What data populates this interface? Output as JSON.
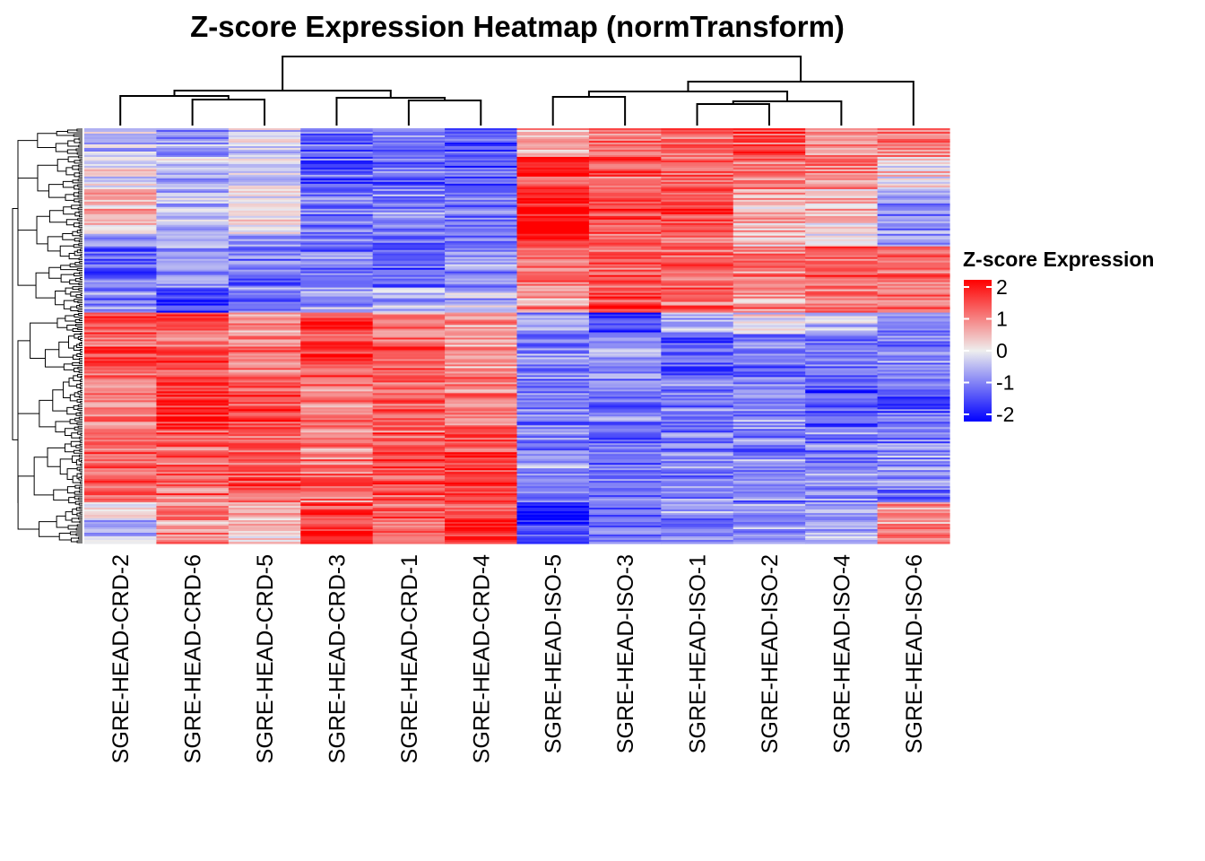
{
  "chart_data": {
    "type": "heatmap",
    "title": "Z-score Expression Heatmap (normTransform)",
    "columns": [
      "SGRE-HEAD-CRD-2",
      "SGRE-HEAD-CRD-6",
      "SGRE-HEAD-CRD-5",
      "SGRE-HEAD-CRD-3",
      "SGRE-HEAD-CRD-1",
      "SGRE-HEAD-CRD-4",
      "SGRE-HEAD-ISO-5",
      "SGRE-HEAD-ISO-3",
      "SGRE-HEAD-ISO-1",
      "SGRE-HEAD-ISO-2",
      "SGRE-HEAD-ISO-4",
      "SGRE-HEAD-ISO-6"
    ],
    "legend": {
      "title": "Z-score Expression",
      "ticks": [
        "2",
        "1",
        "0",
        "-1",
        "-2"
      ],
      "tick_values": [
        2,
        1,
        0,
        -1,
        -2
      ],
      "range": [
        -2,
        2
      ],
      "colors": {
        "low": "#0000FF",
        "mid": "#EEEEEE",
        "high": "#FF0000"
      },
      "placement": "right"
    },
    "column_dendrogram": {
      "merges": [
        {
          "a": "SGRE-HEAD-CRD-6",
          "b": "SGRE-HEAD-CRD-5",
          "height": 29,
          "id": "m1"
        },
        {
          "a": "SGRE-HEAD-CRD-2",
          "b": "m1",
          "height": 33,
          "id": "m2"
        },
        {
          "a": "SGRE-HEAD-CRD-1",
          "b": "SGRE-HEAD-CRD-4",
          "height": 28,
          "id": "m3"
        },
        {
          "a": "SGRE-HEAD-CRD-3",
          "b": "m3",
          "height": 31,
          "id": "m4"
        },
        {
          "a": "m2",
          "b": "m4",
          "height": 39,
          "id": "m5"
        },
        {
          "a": "SGRE-HEAD-ISO-5",
          "b": "SGRE-HEAD-ISO-3",
          "height": 32,
          "id": "m6"
        },
        {
          "a": "SGRE-HEAD-ISO-1",
          "b": "SGRE-HEAD-ISO-2",
          "height": 24,
          "id": "m7"
        },
        {
          "a": "m7",
          "b": "SGRE-HEAD-ISO-4",
          "height": 27,
          "id": "m8"
        },
        {
          "a": "m6",
          "b": "m8",
          "height": 38,
          "id": "m9"
        },
        {
          "a": "m9",
          "b": "SGRE-HEAD-ISO-6",
          "height": 49,
          "id": "m10"
        },
        {
          "a": "m5",
          "b": "m10",
          "height": 77,
          "id": "m11"
        }
      ]
    },
    "row_blocks": [
      {
        "rows": 16,
        "mean_z": [
          -0.4,
          -0.8,
          -0.3,
          -1.2,
          -1.0,
          -1.3,
          0.6,
          1.1,
          1.2,
          1.4,
          0.9,
          0.9
        ]
      },
      {
        "rows": 18,
        "mean_z": [
          0.1,
          -0.5,
          -0.2,
          -1.3,
          -1.2,
          -1.2,
          1.5,
          1.2,
          1.1,
          1.0,
          0.9,
          0.2
        ]
      },
      {
        "rows": 25,
        "mean_z": [
          0.4,
          -0.6,
          0.0,
          -1.1,
          -0.9,
          -1.1,
          2.0,
          1.3,
          1.3,
          0.5,
          0.3,
          -0.8
        ]
      },
      {
        "rows": 7,
        "mean_z": [
          -0.5,
          -0.6,
          -0.5,
          -0.8,
          -0.9,
          -1.0,
          1.8,
          1.3,
          1.2,
          0.6,
          0.3,
          -0.6
        ]
      },
      {
        "rows": 23,
        "mean_z": [
          -1.1,
          -0.7,
          -1.0,
          -1.0,
          -1.1,
          -0.7,
          1.0,
          1.3,
          1.2,
          1.0,
          1.3,
          1.2
        ]
      },
      {
        "rows": 14,
        "mean_z": [
          -0.8,
          -1.6,
          -0.8,
          -0.7,
          -0.4,
          -0.4,
          0.8,
          1.5,
          1.2,
          0.8,
          0.9,
          1.2
        ]
      },
      {
        "rows": 12,
        "mean_z": [
          1.4,
          1.4,
          0.6,
          1.5,
          0.9,
          0.6,
          -0.7,
          -1.5,
          -0.5,
          -0.1,
          -0.4,
          -1.0
        ]
      },
      {
        "rows": 24,
        "mean_z": [
          1.2,
          1.2,
          1.0,
          1.4,
          1.2,
          0.8,
          -0.9,
          -0.8,
          -1.3,
          -1.0,
          -1.0,
          -0.8
        ]
      },
      {
        "rows": 30,
        "mean_z": [
          1.0,
          1.6,
          1.3,
          1.0,
          1.2,
          0.9,
          -0.9,
          -0.9,
          -1.0,
          -0.9,
          -1.3,
          -1.2
        ]
      },
      {
        "rows": 40,
        "mean_z": [
          1.1,
          1.1,
          1.2,
          1.0,
          1.2,
          1.4,
          -0.8,
          -1.2,
          -0.8,
          -0.9,
          -0.9,
          -0.9
        ]
      },
      {
        "rows": 10,
        "mean_z": [
          0.0,
          1.0,
          0.7,
          1.4,
          1.1,
          1.4,
          -2.0,
          -1.2,
          -0.8,
          -0.7,
          -0.6,
          0.8
        ]
      },
      {
        "rows": 13,
        "mean_z": [
          -0.6,
          0.8,
          0.3,
          1.6,
          1.0,
          1.7,
          -1.3,
          -1.0,
          -0.9,
          -0.9,
          -0.6,
          0.9
        ]
      }
    ]
  }
}
